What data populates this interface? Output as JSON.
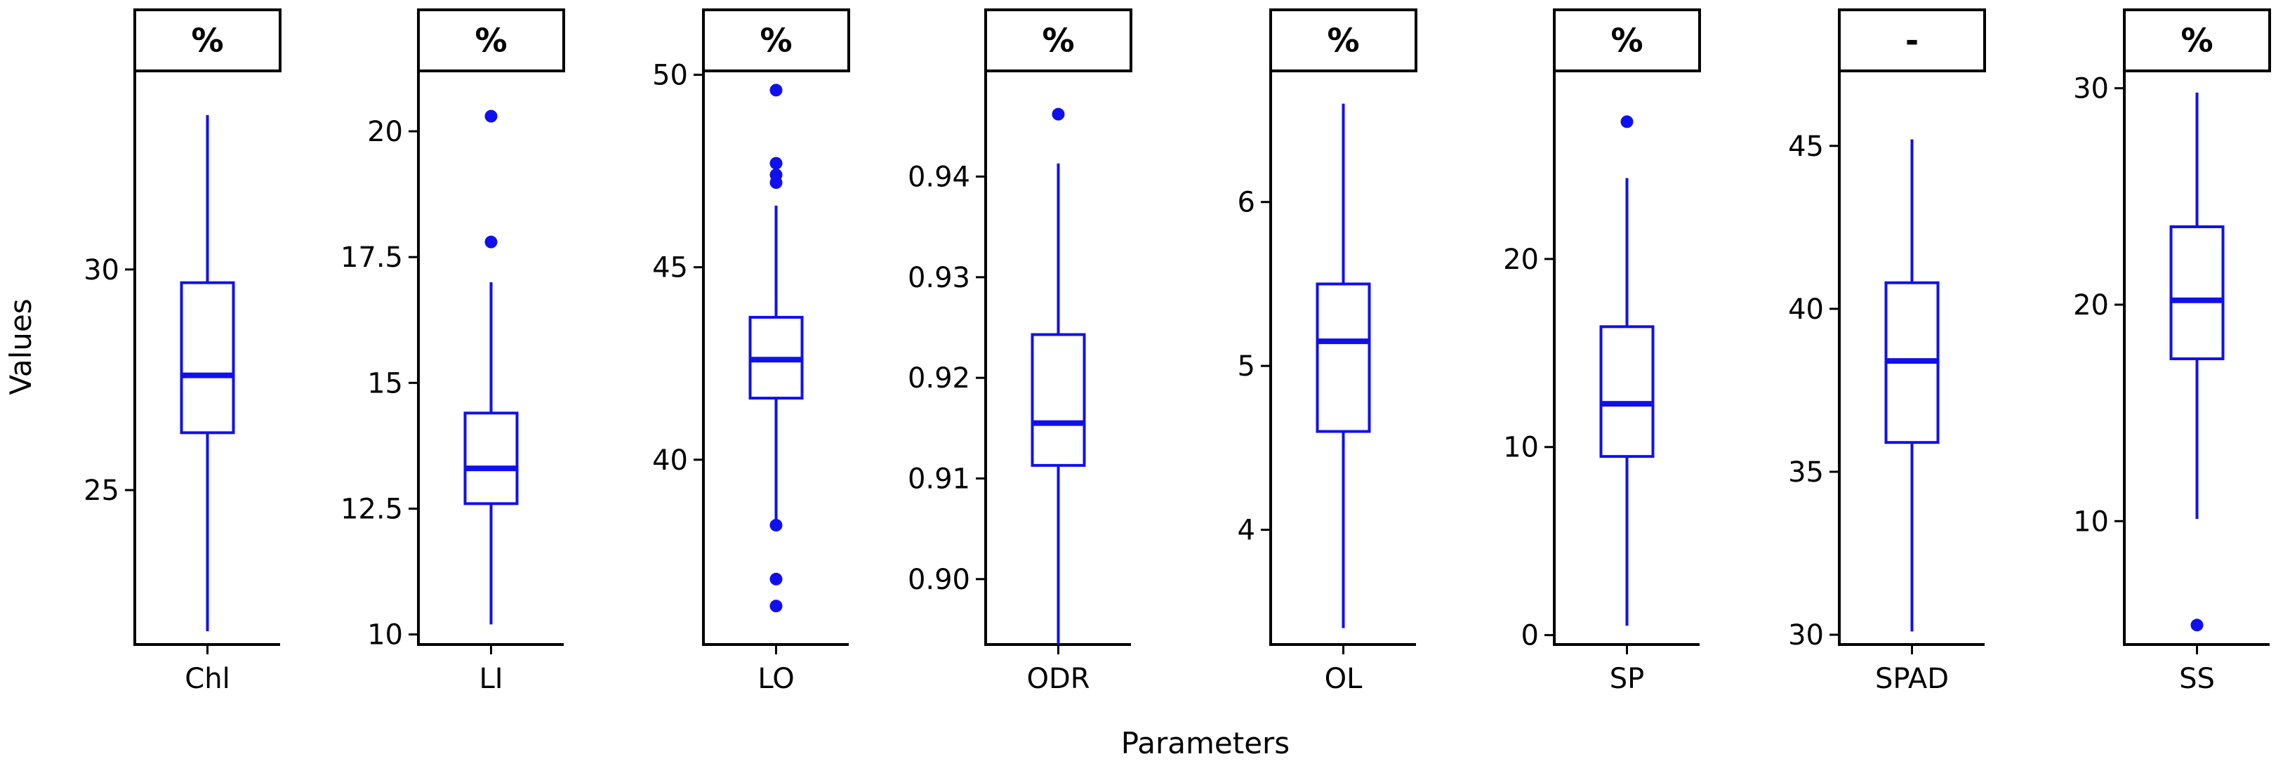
{
  "chart_data": {
    "type": "boxplot",
    "xlabel": "Parameters",
    "ylabel": "Values",
    "box_color": "#1010ee",
    "panels": [
      {
        "category": "Chl",
        "unit": "%",
        "ylim": [
          21.5,
          34.5
        ],
        "yticks": [
          25,
          30
        ],
        "yticklabels": [
          "25",
          "30"
        ],
        "whisker_low": 21.8,
        "q1": 26.3,
        "median": 27.6,
        "q3": 29.7,
        "whisker_high": 33.5,
        "outliers": []
      },
      {
        "category": "LI",
        "unit": "%",
        "ylim": [
          9.8,
          21.2
        ],
        "yticks": [
          10,
          12.5,
          15,
          17.5,
          20
        ],
        "yticklabels": [
          "10",
          "12.5",
          "15",
          "17.5",
          "20"
        ],
        "whisker_low": 10.2,
        "q1": 12.6,
        "median": 13.3,
        "q3": 14.4,
        "whisker_high": 17.0,
        "outliers": [
          17.8,
          20.3
        ]
      },
      {
        "category": "LO",
        "unit": "%",
        "ylim": [
          35.2,
          50.1
        ],
        "yticks": [
          40,
          45,
          50
        ],
        "yticklabels": [
          "40",
          "45",
          "50"
        ],
        "whisker_low": 38.4,
        "q1": 41.6,
        "median": 42.6,
        "q3": 43.7,
        "whisker_high": 46.6,
        "outliers": [
          36.2,
          36.9,
          38.3,
          47.2,
          47.4,
          47.7,
          49.6
        ]
      },
      {
        "category": "ODR",
        "unit": "%",
        "ylim": [
          0.8935,
          0.9505
        ],
        "yticks": [
          0.9,
          0.91,
          0.92,
          0.93,
          0.94
        ],
        "yticklabels": [
          "0.90",
          "0.91",
          "0.92",
          "0.93",
          "0.94"
        ],
        "whisker_low": 0.8935,
        "q1": 0.9113,
        "median": 0.9155,
        "q3": 0.9243,
        "whisker_high": 0.9413,
        "outliers": [
          0.9462
        ]
      },
      {
        "category": "OL",
        "unit": "%",
        "ylim": [
          3.3,
          6.8
        ],
        "yticks": [
          4,
          5,
          6
        ],
        "yticklabels": [
          "4",
          "5",
          "6"
        ],
        "whisker_low": 3.4,
        "q1": 4.6,
        "median": 5.15,
        "q3": 5.5,
        "whisker_high": 6.6,
        "outliers": []
      },
      {
        "category": "SP",
        "unit": "%",
        "ylim": [
          -0.5,
          30.0
        ],
        "yticks": [
          0,
          10,
          20
        ],
        "yticklabels": [
          "0",
          "10",
          "20"
        ],
        "whisker_low": 0.5,
        "q1": 9.5,
        "median": 12.3,
        "q3": 16.4,
        "whisker_high": 24.3,
        "outliers": [
          27.3
        ]
      },
      {
        "category": "SPAD",
        "unit": "-",
        "ylim": [
          29.7,
          47.3
        ],
        "yticks": [
          30,
          35,
          40,
          45
        ],
        "yticklabels": [
          "30",
          "35",
          "40",
          "45"
        ],
        "whisker_low": 30.1,
        "q1": 35.9,
        "median": 38.4,
        "q3": 40.8,
        "whisker_high": 45.2,
        "outliers": []
      },
      {
        "category": "SS",
        "unit": "%",
        "ylim": [
          4.3,
          30.8
        ],
        "yticks": [
          10,
          20,
          30
        ],
        "yticklabels": [
          "10",
          "20",
          "30"
        ],
        "whisker_low": 10.1,
        "q1": 17.5,
        "median": 20.2,
        "q3": 23.6,
        "whisker_high": 29.8,
        "outliers": [
          5.2
        ]
      }
    ]
  }
}
